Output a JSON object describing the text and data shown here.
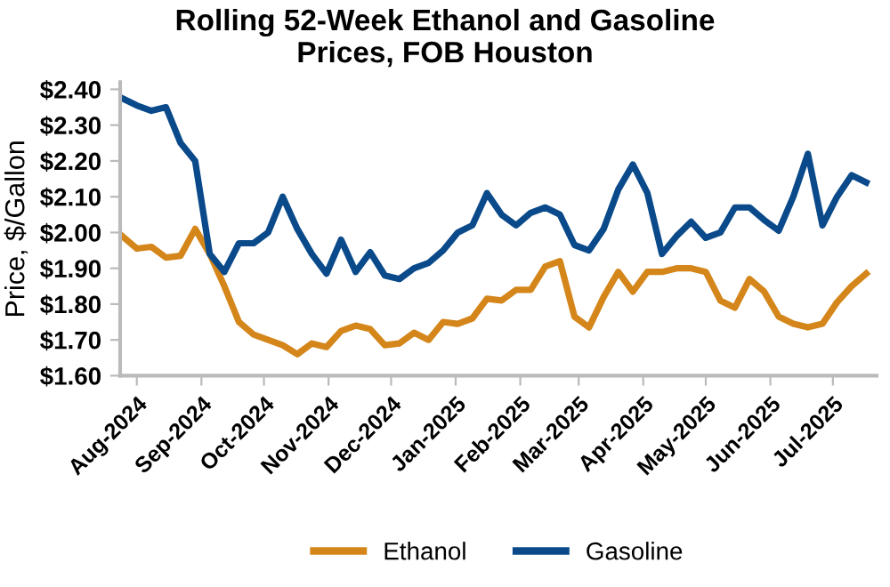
{
  "chart_data": {
    "type": "line",
    "title": "Rolling 52-Week Ethanol and Gasoline\nPrices, FOB Houston",
    "ylabel": "Price, $/Gallon",
    "x": [
      "2024-07-25",
      "2024-08-01",
      "2024-08-08",
      "2024-08-15",
      "2024-08-22",
      "2024-08-29",
      "2024-09-05",
      "2024-09-12",
      "2024-09-19",
      "2024-09-26",
      "2024-10-03",
      "2024-10-10",
      "2024-10-17",
      "2024-10-24",
      "2024-10-31",
      "2024-11-07",
      "2024-11-14",
      "2024-11-21",
      "2024-11-28",
      "2024-12-05",
      "2024-12-12",
      "2024-12-19",
      "2024-12-26",
      "2025-01-02",
      "2025-01-09",
      "2025-01-16",
      "2025-01-23",
      "2025-01-30",
      "2025-02-06",
      "2025-02-13",
      "2025-02-20",
      "2025-02-27",
      "2025-03-06",
      "2025-03-13",
      "2025-03-20",
      "2025-03-27",
      "2025-04-03",
      "2025-04-10",
      "2025-04-17",
      "2025-04-24",
      "2025-05-01",
      "2025-05-08",
      "2025-05-15",
      "2025-05-22",
      "2025-05-29",
      "2025-06-05",
      "2025-06-12",
      "2025-06-19",
      "2025-06-26",
      "2025-07-03",
      "2025-07-10",
      "2025-07-17"
    ],
    "series": [
      {
        "name": "Ethanol",
        "color": "#d4861a",
        "values": [
          1.99,
          1.955,
          1.96,
          1.93,
          1.935,
          2.01,
          1.94,
          1.85,
          1.75,
          1.715,
          1.7,
          1.685,
          1.66,
          1.69,
          1.68,
          1.725,
          1.74,
          1.73,
          1.685,
          1.69,
          1.72,
          1.7,
          1.75,
          1.745,
          1.76,
          1.815,
          1.81,
          1.84,
          1.84,
          1.905,
          1.92,
          1.765,
          1.735,
          1.82,
          1.89,
          1.835,
          1.89,
          1.89,
          1.9,
          1.9,
          1.89,
          1.81,
          1.79,
          1.87,
          1.835,
          1.765,
          1.745,
          1.735,
          1.745,
          1.805,
          1.85,
          1.885
        ]
      },
      {
        "name": "Gasoline",
        "color": "#0a4a8a",
        "values": [
          2.375,
          2.355,
          2.34,
          2.35,
          2.25,
          2.2,
          1.94,
          1.89,
          1.97,
          1.97,
          2.0,
          2.1,
          2.01,
          1.94,
          1.885,
          1.98,
          1.89,
          1.945,
          1.88,
          1.87,
          1.9,
          1.915,
          1.95,
          2.0,
          2.02,
          2.11,
          2.05,
          2.02,
          2.055,
          2.07,
          2.05,
          1.965,
          1.95,
          2.01,
          2.12,
          2.19,
          2.11,
          1.94,
          1.99,
          2.03,
          1.985,
          2.0,
          2.07,
          2.07,
          2.035,
          2.005,
          2.1,
          2.22,
          2.02,
          2.1,
          2.16,
          2.14
        ]
      }
    ],
    "xlim": [
      "2024-07-24",
      "2025-07-22"
    ],
    "xticks": [
      {
        "value": "2024-08-01",
        "label": "Aug-2024"
      },
      {
        "value": "2024-09-01",
        "label": "Sep-2024"
      },
      {
        "value": "2024-10-01",
        "label": "Oct-2024"
      },
      {
        "value": "2024-11-01",
        "label": "Nov-2024"
      },
      {
        "value": "2024-12-01",
        "label": "Dec-2024"
      },
      {
        "value": "2025-01-01",
        "label": "Jan-2025"
      },
      {
        "value": "2025-02-01",
        "label": "Feb-2025"
      },
      {
        "value": "2025-03-01",
        "label": "Mar-2025"
      },
      {
        "value": "2025-04-01",
        "label": "Apr-2025"
      },
      {
        "value": "2025-05-01",
        "label": "May-2025"
      },
      {
        "value": "2025-06-01",
        "label": "Jun-2025"
      },
      {
        "value": "2025-07-01",
        "label": "Jul-2025"
      }
    ],
    "ylim": [
      1.6,
      2.42
    ],
    "yticks": [
      {
        "value": 1.6,
        "label": "$1.60"
      },
      {
        "value": 1.7,
        "label": "$1.70"
      },
      {
        "value": 1.8,
        "label": "$1.80"
      },
      {
        "value": 1.9,
        "label": "$1.90"
      },
      {
        "value": 2.0,
        "label": "$2.00"
      },
      {
        "value": 2.1,
        "label": "$2.10"
      },
      {
        "value": 2.2,
        "label": "$2.20"
      },
      {
        "value": 2.3,
        "label": "$2.30"
      },
      {
        "value": 2.4,
        "label": "$2.40"
      }
    ],
    "grid": false,
    "legend": "bottom",
    "line_style": "solid",
    "marker": "none"
  }
}
